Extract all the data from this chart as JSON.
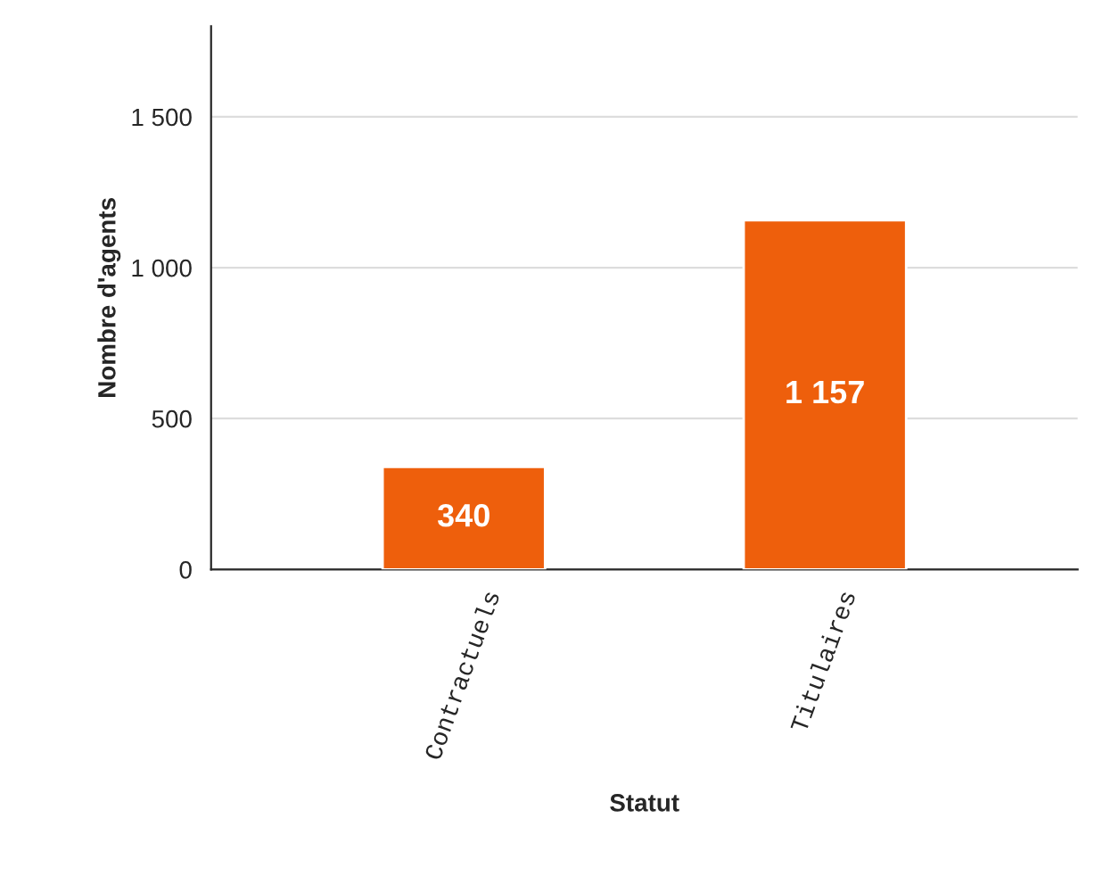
{
  "chart_data": {
    "type": "bar",
    "xlabel": "Statut",
    "ylabel": "Nombre d'agents",
    "categories": [
      "Contractuels",
      "Titulaires"
    ],
    "values": [
      340,
      1157
    ],
    "color": "#ee5f0c",
    "value_labels": [
      "340",
      "1 157"
    ],
    "ylim": [
      0,
      1800
    ],
    "yticks": [
      0,
      500,
      {
        "value": 1000,
        "label": "1 000"
      },
      {
        "value": 1500,
        "label": "1 500"
      }
    ],
    "grid": "y",
    "legend": false
  }
}
